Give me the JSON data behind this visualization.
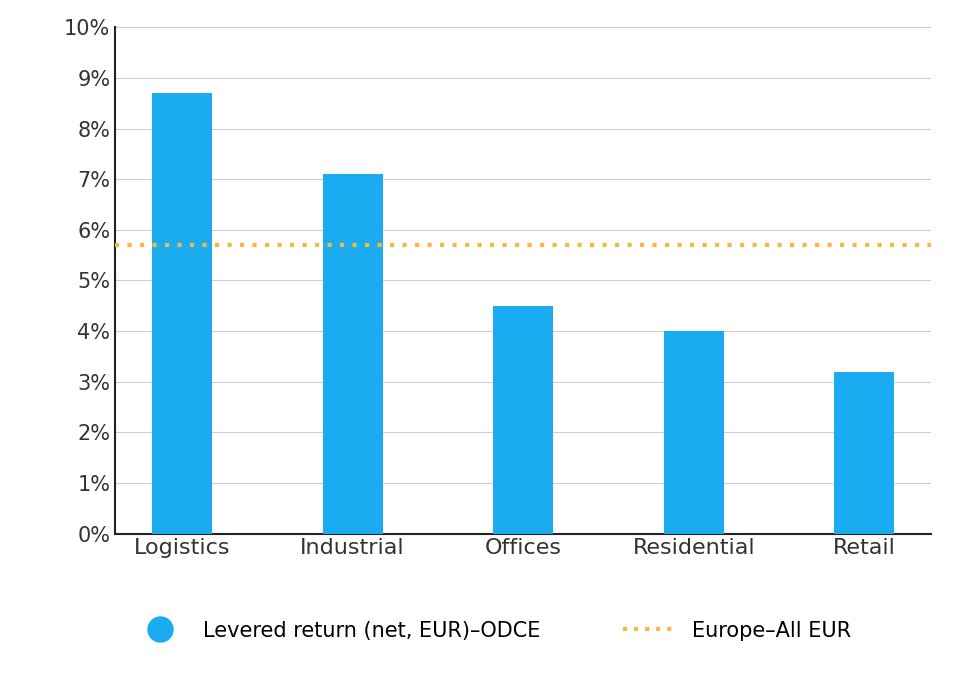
{
  "categories": [
    "Logistics",
    "Industrial",
    "Offices",
    "Residential",
    "Retail"
  ],
  "values": [
    0.087,
    0.071,
    0.045,
    0.04,
    0.032
  ],
  "bar_color": "#1AABF0",
  "reference_line_value": 0.057,
  "reference_line_color": "#F5B942",
  "ylim": [
    0,
    0.1
  ],
  "yticks": [
    0.0,
    0.01,
    0.02,
    0.03,
    0.04,
    0.05,
    0.06,
    0.07,
    0.08,
    0.09,
    0.1
  ],
  "ytick_labels": [
    "0%",
    "1%",
    "2%",
    "3%",
    "4%",
    "5%",
    "6%",
    "7%",
    "8%",
    "9%",
    "10%"
  ],
  "legend_bar_label": "Levered return (net, EUR)–ODCE",
  "legend_line_label": "Europe–All EUR",
  "background_color": "#ffffff",
  "grid_color": "#d0d0d0",
  "bar_width": 0.35,
  "spine_color": "#222222",
  "tick_label_fontsize": 15,
  "x_tick_label_fontsize": 16
}
